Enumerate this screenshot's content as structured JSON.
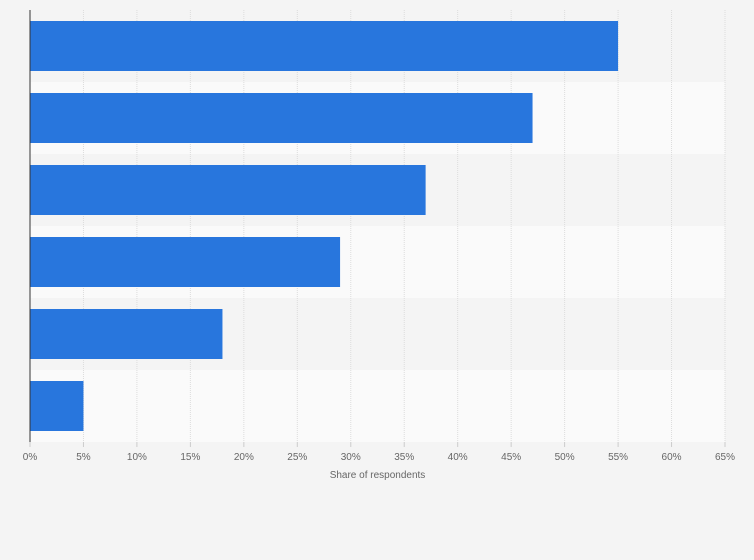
{
  "chart_data": {
    "type": "bar",
    "orientation": "horizontal",
    "categories": [
      "",
      "",
      "",
      "",
      "",
      ""
    ],
    "values": [
      55,
      47,
      37,
      29,
      18,
      5
    ],
    "unit": "%",
    "title": "",
    "xlabel": "Share of respondents",
    "ylabel": "",
    "xlim": [
      0,
      65
    ],
    "xticks": [
      "0%",
      "5%",
      "10%",
      "15%",
      "20%",
      "25%",
      "30%",
      "35%",
      "40%",
      "45%",
      "50%",
      "55%",
      "60%",
      "65%"
    ],
    "grid": true,
    "legend": "none",
    "bar_color": "#2876dd",
    "band_colors": [
      "#f4f4f4",
      "#fafafa"
    ]
  }
}
